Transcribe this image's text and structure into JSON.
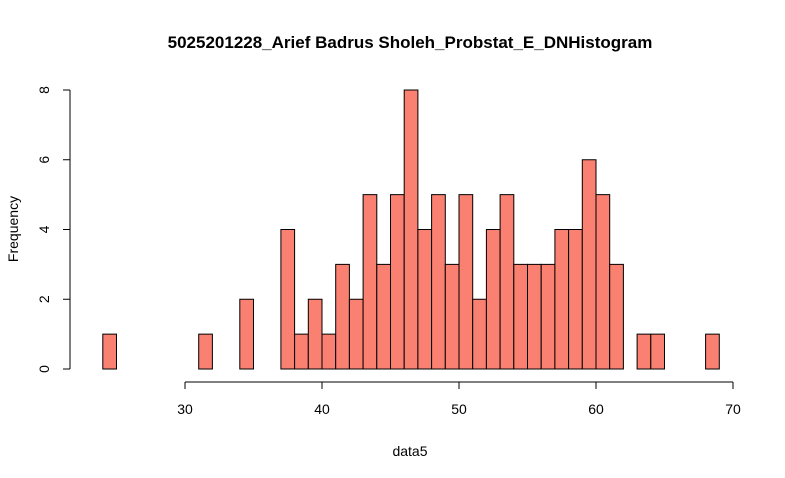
{
  "chart_data": {
    "type": "bar",
    "title": "5025201228_Arief Badrus Sholeh_Probstat_E_DNHistogram",
    "xlabel": "data5",
    "ylabel": "Frequency",
    "bar_color": "#FA8072",
    "bin_width": 1,
    "bins_start": [
      24,
      25,
      26,
      27,
      28,
      29,
      30,
      31,
      32,
      33,
      34,
      35,
      36,
      37,
      38,
      39,
      40,
      41,
      42,
      43,
      44,
      45,
      46,
      47,
      48,
      49,
      50,
      51,
      52,
      53,
      54,
      55,
      56,
      57,
      58,
      59,
      60,
      61,
      62,
      63,
      64,
      65,
      66,
      67,
      68
    ],
    "values": [
      1,
      0,
      0,
      0,
      0,
      0,
      0,
      1,
      0,
      0,
      2,
      0,
      0,
      4,
      1,
      2,
      1,
      3,
      2,
      5,
      3,
      5,
      8,
      4,
      5,
      3,
      5,
      2,
      4,
      5,
      3,
      3,
      3,
      4,
      4,
      6,
      5,
      3,
      0,
      1,
      1,
      0,
      0,
      0,
      1
    ],
    "xlim": [
      24,
      69
    ],
    "ylim": [
      0,
      8
    ],
    "x_ticks": [
      "30",
      "40",
      "50",
      "60",
      "70"
    ],
    "y_ticks": [
      "0",
      "2",
      "4",
      "6",
      "8"
    ],
    "grid": false
  }
}
